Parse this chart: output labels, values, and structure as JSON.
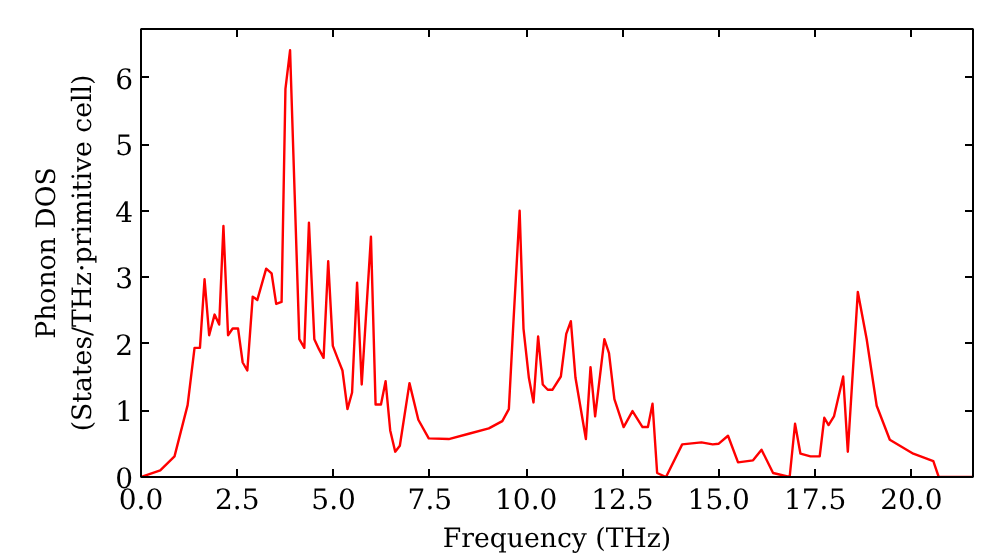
{
  "chart_data": {
    "type": "line",
    "xlabel": "Frequency (THz)",
    "ylabel": "Phonon DOS\n(States/THz·primitive cell)",
    "xlim": [
      0,
      21.6
    ],
    "ylim": [
      0,
      6.73
    ],
    "xticks": [
      {
        "value": 0,
        "label": "0.0"
      },
      {
        "value": 2.5,
        "label": "2.5"
      },
      {
        "value": 5,
        "label": "5.0"
      },
      {
        "value": 7.5,
        "label": "7.5"
      },
      {
        "value": 10,
        "label": "10.0"
      },
      {
        "value": 12.5,
        "label": "12.5"
      },
      {
        "value": 15,
        "label": "15.0"
      },
      {
        "value": 17.5,
        "label": "17.5"
      },
      {
        "value": 20,
        "label": "20.0"
      }
    ],
    "yticks": [
      0,
      1,
      2,
      3,
      4,
      5,
      6
    ],
    "grid": false,
    "marker": "none",
    "line_style": "solid",
    "series": [
      {
        "color": "#ff0000",
        "x": [
          0,
          0.5,
          0.87,
          1.21,
          1.39,
          1.53,
          1.65,
          1.77,
          1.91,
          2.03,
          2.14,
          2.26,
          2.38,
          2.52,
          2.64,
          2.76,
          2.9,
          3.02,
          3.25,
          3.39,
          3.51,
          3.65,
          3.75,
          3.87,
          3.99,
          4.11,
          4.24,
          4.36,
          4.5,
          4.62,
          4.74,
          4.86,
          4.98,
          5.1,
          5.23,
          5.36,
          5.48,
          5.61,
          5.73,
          5.97,
          6.09,
          6.23,
          6.35,
          6.47,
          6.6,
          6.72,
          6.97,
          7.2,
          7.47,
          7.99,
          8.51,
          9.03,
          9.38,
          9.55,
          9.67,
          9.83,
          9.93,
          10.07,
          10.19,
          10.31,
          10.43,
          10.56,
          10.68,
          10.9,
          11.04,
          11.16,
          11.28,
          11.55,
          11.67,
          11.79,
          12.03,
          12.15,
          12.29,
          12.53,
          12.76,
          13.02,
          13.16,
          13.28,
          13.4,
          13.63,
          14.05,
          14.55,
          14.84,
          15.0,
          15.24,
          15.5,
          15.89,
          16.11,
          16.41,
          16.84,
          16.98,
          17.12,
          17.38,
          17.62,
          17.74,
          17.85,
          17.99,
          18.23,
          18.35,
          18.61,
          18.84,
          19.1,
          19.44,
          20.05,
          20.57,
          20.71,
          21.6
        ],
        "values": [
          0,
          0.1,
          0.31,
          1.08,
          1.94,
          1.94,
          2.97,
          2.13,
          2.44,
          2.29,
          3.77,
          2.13,
          2.23,
          2.23,
          1.72,
          1.6,
          2.71,
          2.66,
          3.13,
          3.06,
          2.6,
          2.63,
          5.83,
          6.41,
          4.24,
          2.07,
          1.94,
          3.82,
          2.07,
          1.92,
          1.79,
          3.24,
          1.97,
          1.79,
          1.6,
          1.02,
          1.27,
          2.92,
          1.39,
          3.61,
          1.09,
          1.09,
          1.44,
          0.7,
          0.38,
          0.47,
          1.41,
          0.86,
          0.58,
          0.57,
          0.65,
          0.73,
          0.84,
          1.02,
          2.34,
          4.0,
          2.23,
          1.49,
          1.12,
          2.11,
          1.39,
          1.31,
          1.31,
          1.51,
          2.15,
          2.34,
          1.49,
          0.57,
          1.65,
          0.91,
          2.07,
          1.86,
          1.17,
          0.75,
          0.99,
          0.75,
          0.75,
          1.1,
          0.06,
          0.0,
          0.49,
          0.52,
          0.49,
          0.5,
          0.62,
          0.22,
          0.25,
          0.41,
          0.06,
          0.0,
          0.8,
          0.35,
          0.31,
          0.31,
          0.89,
          0.78,
          0.91,
          1.51,
          0.38,
          2.78,
          2.07,
          1.07,
          0.56,
          0.35,
          0.24,
          0.0,
          0.0
        ]
      }
    ]
  }
}
